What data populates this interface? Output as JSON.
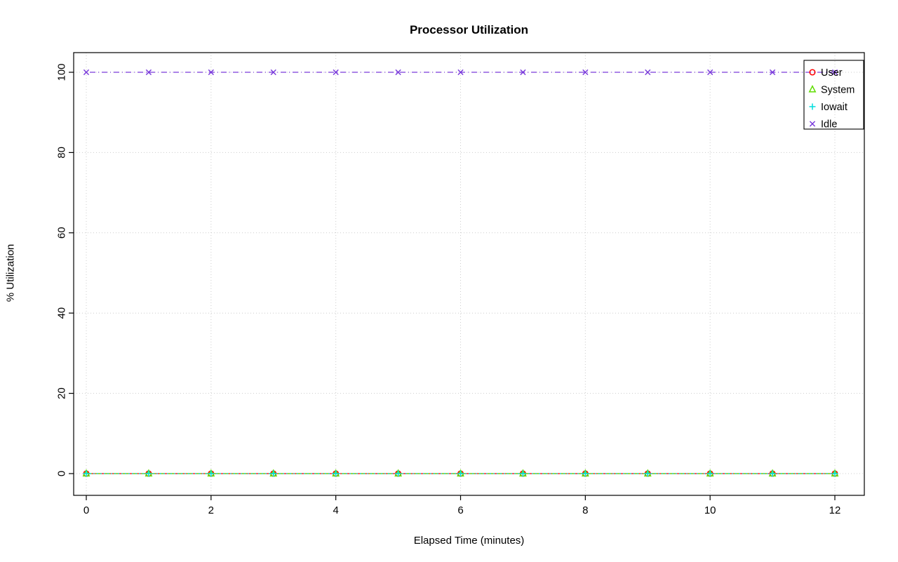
{
  "chart_data": {
    "type": "line",
    "title": "Processor Utilization",
    "xlabel": "Elapsed Time (minutes)",
    "ylabel": "% Utilization",
    "xlim": [
      0,
      12
    ],
    "ylim": [
      0,
      100
    ],
    "xticks": [
      0,
      2,
      4,
      6,
      8,
      10,
      12
    ],
    "yticks": [
      0,
      20,
      40,
      60,
      80,
      100
    ],
    "grid": true,
    "grid_color": "#CCCCCC",
    "legend_position": "top-right",
    "legend_entries": [
      "User",
      "System",
      "Iowait",
      "Idle"
    ],
    "x": [
      0,
      1,
      2,
      3,
      4,
      5,
      6,
      7,
      8,
      9,
      10,
      11,
      12
    ],
    "series": [
      {
        "name": "User",
        "color": "#FF0000",
        "marker": "circle",
        "linestyle": "solid",
        "values": [
          0,
          0,
          0,
          0,
          0,
          0,
          0,
          0,
          0,
          0,
          0,
          0,
          0
        ]
      },
      {
        "name": "System",
        "color": "#5FDD00",
        "marker": "triangle",
        "linestyle": "dashed",
        "values": [
          0,
          0,
          0,
          0,
          0,
          0,
          0,
          0,
          0,
          0,
          0,
          0,
          0
        ]
      },
      {
        "name": "Iowait",
        "color": "#00DDDD",
        "marker": "plus",
        "linestyle": "dotted",
        "values": [
          0,
          0,
          0,
          0,
          0,
          0,
          0,
          0,
          0,
          0,
          0,
          0,
          0
        ]
      },
      {
        "name": "Idle",
        "color": "#7A3BDB",
        "marker": "x",
        "linestyle": "dashdot",
        "values": [
          100,
          100,
          100,
          100,
          100,
          100,
          100,
          100,
          100,
          100,
          100,
          100,
          100
        ]
      }
    ]
  }
}
